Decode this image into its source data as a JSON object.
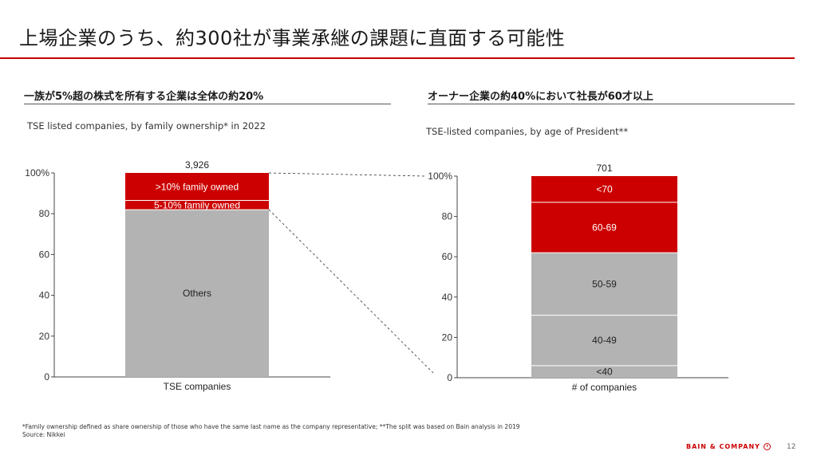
{
  "title": "上場企業のうち、約300社が事業承継の課題に直面する可能性",
  "left": {
    "heading": "一族が5%超の株式を所有する企業は全体の約20%",
    "subtitle": "TSE listed companies, by family ownership* in 2022"
  },
  "right": {
    "heading": "オーナー企業の約40%において社長が60才以上",
    "subtitle": "TSE-listed companies, by age of President**"
  },
  "footnote": {
    "line1": "*Family ownership defined as share ownership of those who have the same last name as the company representative; **The split was based on Bain analysis in 2019",
    "line2": "Source: Nikkei"
  },
  "brand": "BAIN & COMPANY",
  "page_number": "12",
  "colors": {
    "red": "#cc0000",
    "grey": "#b3b3b3",
    "axis": "#444444"
  },
  "chart_data": [
    {
      "type": "bar",
      "stacked": true,
      "percent": true,
      "categories": [
        "TSE companies"
      ],
      "total_label": "3,926",
      "ylim": [
        0,
        100
      ],
      "yticks": [
        "0",
        "20",
        "40",
        "60",
        "80",
        "100%"
      ],
      "series": [
        {
          "name": "Others",
          "values": [
            82
          ],
          "color": "#b3b3b3"
        },
        {
          "name": "5-10% family owned",
          "values": [
            4.5
          ],
          "color": "#cc0000"
        },
        {
          "name": ">10% family owned",
          "values": [
            13.5
          ],
          "color": "#cc0000"
        }
      ]
    },
    {
      "type": "bar",
      "stacked": true,
      "percent": true,
      "categories": [
        "# of companies"
      ],
      "total_label": "701",
      "ylim": [
        0,
        100
      ],
      "yticks": [
        "0",
        "20",
        "40",
        "60",
        "80",
        "100%"
      ],
      "series": [
        {
          "name": "<40",
          "values": [
            6
          ],
          "color": "#b3b3b3"
        },
        {
          "name": "40-49",
          "values": [
            25
          ],
          "color": "#b3b3b3"
        },
        {
          "name": "50-59",
          "values": [
            31
          ],
          "color": "#b3b3b3"
        },
        {
          "name": "60-69",
          "values": [
            25
          ],
          "color": "#cc0000"
        },
        {
          "name": "<70",
          "values": [
            13
          ],
          "color": "#cc0000"
        }
      ]
    }
  ]
}
